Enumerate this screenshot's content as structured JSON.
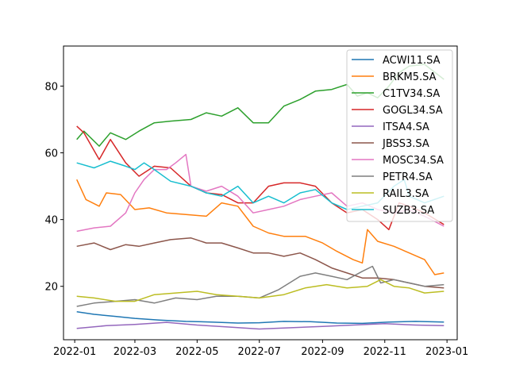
{
  "chart_data": {
    "type": "line",
    "title": "",
    "xlabel": "",
    "ylabel": "",
    "x_range": [
      "2021-12-21",
      "2023-01-11"
    ],
    "ylim": [
      4,
      92
    ],
    "x_ticks": [
      {
        "date": "2022-01-01",
        "label": "2022-01"
      },
      {
        "date": "2022-03-01",
        "label": "2022-03"
      },
      {
        "date": "2022-05-01",
        "label": "2022-05"
      },
      {
        "date": "2022-07-01",
        "label": "2022-07"
      },
      {
        "date": "2022-09-01",
        "label": "2022-09"
      },
      {
        "date": "2022-11-01",
        "label": "2022-11"
      },
      {
        "date": "2023-01-01",
        "label": "2023-01"
      }
    ],
    "y_ticks": [
      20,
      40,
      60,
      80
    ],
    "grid": false,
    "legend_position": "top-right",
    "series": [
      {
        "name": "ACWI11.SA",
        "color": "#1f77b4",
        "points": [
          [
            "2022-01-03",
            12.4
          ],
          [
            "2022-01-20",
            11.6
          ],
          [
            "2022-02-10",
            11.0
          ],
          [
            "2022-03-01",
            10.4
          ],
          [
            "2022-03-25",
            9.9
          ],
          [
            "2022-04-20",
            9.5
          ],
          [
            "2022-05-15",
            9.3
          ],
          [
            "2022-06-10",
            9.0
          ],
          [
            "2022-07-01",
            9.1
          ],
          [
            "2022-07-25",
            9.5
          ],
          [
            "2022-08-20",
            9.4
          ],
          [
            "2022-09-15",
            9.0
          ],
          [
            "2022-10-10",
            8.9
          ],
          [
            "2022-11-05",
            9.3
          ],
          [
            "2022-12-01",
            9.5
          ],
          [
            "2022-12-29",
            9.3
          ]
        ]
      },
      {
        "name": "BRKM5.SA",
        "color": "#ff7f0e",
        "points": [
          [
            "2022-01-03",
            52.0
          ],
          [
            "2022-01-12",
            46.0
          ],
          [
            "2022-01-25",
            44.0
          ],
          [
            "2022-02-01",
            48.0
          ],
          [
            "2022-02-15",
            47.5
          ],
          [
            "2022-03-01",
            43.0
          ],
          [
            "2022-03-15",
            43.5
          ],
          [
            "2022-04-01",
            42.0
          ],
          [
            "2022-04-20",
            41.5
          ],
          [
            "2022-05-10",
            41.0
          ],
          [
            "2022-05-25",
            45.0
          ],
          [
            "2022-06-10",
            44.0
          ],
          [
            "2022-06-25",
            38.0
          ],
          [
            "2022-07-10",
            36.0
          ],
          [
            "2022-07-25",
            35.0
          ],
          [
            "2022-08-15",
            35.0
          ],
          [
            "2022-09-01",
            33.0
          ],
          [
            "2022-09-15",
            30.5
          ],
          [
            "2022-10-01",
            28.0
          ],
          [
            "2022-10-10",
            27.0
          ],
          [
            "2022-10-15",
            37.0
          ],
          [
            "2022-10-25",
            33.5
          ],
          [
            "2022-11-10",
            32.0
          ],
          [
            "2022-11-25",
            30.0
          ],
          [
            "2022-12-10",
            28.0
          ],
          [
            "2022-12-20",
            23.5
          ],
          [
            "2022-12-29",
            24.0
          ]
        ]
      },
      {
        "name": "C1TV34.SA",
        "color": "#2ca02c",
        "points": [
          [
            "2022-01-03",
            64.0
          ],
          [
            "2022-01-10",
            66.5
          ],
          [
            "2022-01-25",
            62.0
          ],
          [
            "2022-02-05",
            66.0
          ],
          [
            "2022-02-20",
            64.0
          ],
          [
            "2022-03-05",
            66.5
          ],
          [
            "2022-03-20",
            69.0
          ],
          [
            "2022-04-05",
            69.5
          ],
          [
            "2022-04-25",
            70.0
          ],
          [
            "2022-05-10",
            72.0
          ],
          [
            "2022-05-25",
            71.0
          ],
          [
            "2022-06-10",
            73.5
          ],
          [
            "2022-06-25",
            69.0
          ],
          [
            "2022-07-10",
            69.0
          ],
          [
            "2022-07-25",
            74.0
          ],
          [
            "2022-08-10",
            76.0
          ],
          [
            "2022-08-25",
            78.5
          ],
          [
            "2022-09-10",
            79.0
          ],
          [
            "2022-09-25",
            80.5
          ],
          [
            "2022-10-05",
            77.0
          ],
          [
            "2022-10-15",
            78.0
          ],
          [
            "2022-10-25",
            76.5
          ],
          [
            "2022-11-05",
            80.0
          ],
          [
            "2022-11-15",
            84.0
          ],
          [
            "2022-11-25",
            86.0
          ],
          [
            "2022-12-10",
            86.5
          ],
          [
            "2022-12-29",
            82.0
          ]
        ]
      },
      {
        "name": "GOGL34.SA",
        "color": "#d62728",
        "points": [
          [
            "2022-01-03",
            68.0
          ],
          [
            "2022-01-10",
            66.0
          ],
          [
            "2022-01-25",
            58.0
          ],
          [
            "2022-02-05",
            64.0
          ],
          [
            "2022-02-20",
            57.0
          ],
          [
            "2022-03-05",
            53.0
          ],
          [
            "2022-03-20",
            56.0
          ],
          [
            "2022-04-05",
            55.5
          ],
          [
            "2022-04-25",
            50.0
          ],
          [
            "2022-05-10",
            48.0
          ],
          [
            "2022-05-25",
            47.5
          ],
          [
            "2022-06-10",
            45.0
          ],
          [
            "2022-06-25",
            45.0
          ],
          [
            "2022-07-10",
            50.0
          ],
          [
            "2022-07-25",
            51.0
          ],
          [
            "2022-08-10",
            51.0
          ],
          [
            "2022-08-25",
            50.0
          ],
          [
            "2022-09-10",
            45.0
          ],
          [
            "2022-09-25",
            42.0
          ],
          [
            "2022-10-10",
            43.0
          ],
          [
            "2022-10-25",
            40.0
          ],
          [
            "2022-11-05",
            37.0
          ],
          [
            "2022-11-15",
            45.0
          ],
          [
            "2022-11-25",
            44.0
          ],
          [
            "2022-12-10",
            42.0
          ],
          [
            "2022-12-29",
            38.5
          ]
        ]
      },
      {
        "name": "ITSA4.SA",
        "color": "#9467bd",
        "points": [
          [
            "2022-01-03",
            7.4
          ],
          [
            "2022-02-01",
            8.2
          ],
          [
            "2022-03-01",
            8.6
          ],
          [
            "2022-04-01",
            9.2
          ],
          [
            "2022-05-01",
            8.4
          ],
          [
            "2022-06-01",
            7.8
          ],
          [
            "2022-07-01",
            7.2
          ],
          [
            "2022-08-01",
            7.6
          ],
          [
            "2022-09-01",
            8.0
          ],
          [
            "2022-10-01",
            8.4
          ],
          [
            "2022-11-01",
            8.8
          ],
          [
            "2022-12-01",
            8.4
          ],
          [
            "2022-12-29",
            8.2
          ]
        ]
      },
      {
        "name": "JBSS3.SA",
        "color": "#8c564b",
        "points": [
          [
            "2022-01-03",
            32.0
          ],
          [
            "2022-01-20",
            33.0
          ],
          [
            "2022-02-05",
            31.0
          ],
          [
            "2022-02-20",
            32.5
          ],
          [
            "2022-03-05",
            32.0
          ],
          [
            "2022-03-20",
            33.0
          ],
          [
            "2022-04-05",
            34.0
          ],
          [
            "2022-04-25",
            34.5
          ],
          [
            "2022-05-10",
            33.0
          ],
          [
            "2022-05-25",
            33.0
          ],
          [
            "2022-06-10",
            31.5
          ],
          [
            "2022-06-25",
            30.0
          ],
          [
            "2022-07-10",
            30.0
          ],
          [
            "2022-07-25",
            29.0
          ],
          [
            "2022-08-10",
            30.0
          ],
          [
            "2022-08-25",
            28.0
          ],
          [
            "2022-09-10",
            25.5
          ],
          [
            "2022-09-25",
            24.0
          ],
          [
            "2022-10-10",
            22.5
          ],
          [
            "2022-10-25",
            22.5
          ],
          [
            "2022-11-10",
            22.0
          ],
          [
            "2022-11-25",
            21.0
          ],
          [
            "2022-12-10",
            20.0
          ],
          [
            "2022-12-29",
            19.5
          ]
        ]
      },
      {
        "name": "MOSC34.SA",
        "color": "#e377c2",
        "points": [
          [
            "2022-01-03",
            36.5
          ],
          [
            "2022-01-20",
            37.5
          ],
          [
            "2022-02-05",
            38.0
          ],
          [
            "2022-02-20",
            42.0
          ],
          [
            "2022-03-01",
            48.0
          ],
          [
            "2022-03-10",
            52.0
          ],
          [
            "2022-03-20",
            55.0
          ],
          [
            "2022-04-01",
            55.0
          ],
          [
            "2022-04-10",
            57.0
          ],
          [
            "2022-04-20",
            59.5
          ],
          [
            "2022-04-25",
            50.0
          ],
          [
            "2022-05-10",
            48.5
          ],
          [
            "2022-05-25",
            50.0
          ],
          [
            "2022-06-10",
            47.0
          ],
          [
            "2022-06-25",
            42.0
          ],
          [
            "2022-07-10",
            43.0
          ],
          [
            "2022-07-25",
            44.0
          ],
          [
            "2022-08-10",
            46.0
          ],
          [
            "2022-08-25",
            47.0
          ],
          [
            "2022-09-10",
            48.0
          ],
          [
            "2022-09-25",
            44.0
          ],
          [
            "2022-10-10",
            45.0
          ],
          [
            "2022-10-25",
            43.0
          ],
          [
            "2022-11-10",
            42.0
          ],
          [
            "2022-11-25",
            43.0
          ],
          [
            "2022-12-10",
            41.0
          ],
          [
            "2022-12-29",
            38.0
          ]
        ]
      },
      {
        "name": "PETR4.SA",
        "color": "#7f7f7f",
        "points": [
          [
            "2022-01-03",
            14.0
          ],
          [
            "2022-01-20",
            15.0
          ],
          [
            "2022-02-10",
            15.5
          ],
          [
            "2022-03-01",
            16.0
          ],
          [
            "2022-03-20",
            15.0
          ],
          [
            "2022-04-10",
            16.5
          ],
          [
            "2022-05-01",
            16.0
          ],
          [
            "2022-05-20",
            17.0
          ],
          [
            "2022-06-10",
            17.0
          ],
          [
            "2022-07-01",
            16.5
          ],
          [
            "2022-07-20",
            19.0
          ],
          [
            "2022-08-10",
            23.0
          ],
          [
            "2022-08-25",
            24.0
          ],
          [
            "2022-09-10",
            23.0
          ],
          [
            "2022-09-25",
            22.0
          ],
          [
            "2022-10-10",
            24.5
          ],
          [
            "2022-10-20",
            26.0
          ],
          [
            "2022-10-28",
            21.0
          ],
          [
            "2022-11-10",
            22.0
          ],
          [
            "2022-11-25",
            21.0
          ],
          [
            "2022-12-10",
            20.0
          ],
          [
            "2022-12-29",
            20.5
          ]
        ]
      },
      {
        "name": "RAIL3.SA",
        "color": "#bcbd22",
        "points": [
          [
            "2022-01-03",
            17.0
          ],
          [
            "2022-01-20",
            16.5
          ],
          [
            "2022-02-10",
            15.5
          ],
          [
            "2022-03-01",
            15.5
          ],
          [
            "2022-03-20",
            17.5
          ],
          [
            "2022-04-10",
            18.0
          ],
          [
            "2022-05-01",
            18.5
          ],
          [
            "2022-05-20",
            17.5
          ],
          [
            "2022-06-10",
            17.0
          ],
          [
            "2022-07-01",
            16.5
          ],
          [
            "2022-07-25",
            17.5
          ],
          [
            "2022-08-15",
            19.5
          ],
          [
            "2022-09-05",
            20.5
          ],
          [
            "2022-09-25",
            19.5
          ],
          [
            "2022-10-15",
            20.0
          ],
          [
            "2022-10-28",
            22.0
          ],
          [
            "2022-11-10",
            20.0
          ],
          [
            "2022-11-25",
            19.5
          ],
          [
            "2022-12-10",
            18.0
          ],
          [
            "2022-12-29",
            18.5
          ]
        ]
      },
      {
        "name": "SUZB3.SA",
        "color": "#17becf",
        "points": [
          [
            "2022-01-03",
            57.0
          ],
          [
            "2022-01-20",
            55.5
          ],
          [
            "2022-02-05",
            57.5
          ],
          [
            "2022-02-20",
            56.0
          ],
          [
            "2022-03-01",
            55.0
          ],
          [
            "2022-03-10",
            57.0
          ],
          [
            "2022-03-20",
            55.0
          ],
          [
            "2022-04-05",
            51.5
          ],
          [
            "2022-04-25",
            50.0
          ],
          [
            "2022-05-10",
            48.0
          ],
          [
            "2022-05-25",
            47.0
          ],
          [
            "2022-06-10",
            50.0
          ],
          [
            "2022-06-25",
            45.0
          ],
          [
            "2022-07-10",
            47.0
          ],
          [
            "2022-07-25",
            45.0
          ],
          [
            "2022-08-10",
            48.0
          ],
          [
            "2022-08-25",
            49.0
          ],
          [
            "2022-09-10",
            45.0
          ],
          [
            "2022-09-25",
            43.0
          ],
          [
            "2022-10-10",
            44.0
          ],
          [
            "2022-10-25",
            45.0
          ],
          [
            "2022-11-10",
            50.0
          ],
          [
            "2022-11-20",
            52.0
          ],
          [
            "2022-11-25",
            47.0
          ],
          [
            "2022-12-10",
            45.0
          ],
          [
            "2022-12-29",
            47.0
          ]
        ]
      }
    ]
  }
}
